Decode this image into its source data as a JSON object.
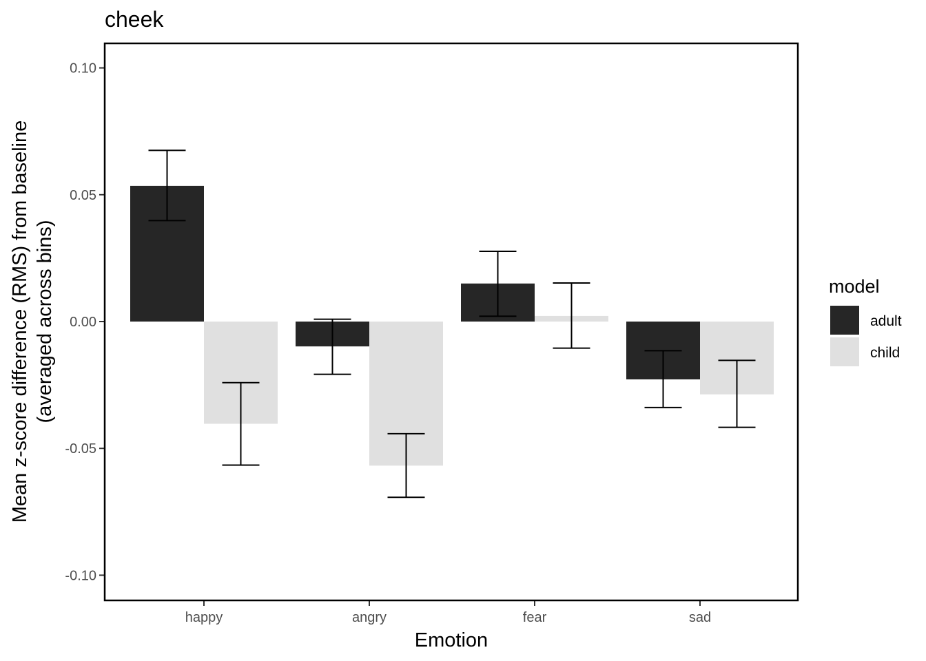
{
  "chart_data": {
    "type": "bar",
    "title": "cheek",
    "xlabel": "Emotion",
    "ylabel_line1": "Mean z-score difference (RMS) from baseline",
    "ylabel_line2": "(averaged across bins)",
    "categories": [
      "happy",
      "angry",
      "fear",
      "sad"
    ],
    "ylim": [
      -0.11,
      0.11
    ],
    "yticks": [
      -0.1,
      -0.05,
      0.0,
      0.05,
      0.1
    ],
    "ytick_labels": [
      "-0.10",
      "-0.05",
      "0.00",
      "0.05",
      "0.10"
    ],
    "grid": false,
    "legend": {
      "title": "model",
      "placement": "right",
      "entries": [
        "adult",
        "child"
      ]
    },
    "series": [
      {
        "name": "adult",
        "color": "#262626",
        "values": [
          0.0535,
          -0.0098,
          0.015,
          -0.0228
        ],
        "err_low": [
          0.0398,
          -0.0208,
          0.0021,
          -0.0339
        ],
        "err_high": [
          0.0675,
          0.0009,
          0.0277,
          -0.0115
        ]
      },
      {
        "name": "child",
        "color": "#e0e0e0",
        "values": [
          -0.0403,
          -0.0568,
          0.0022,
          -0.0287
        ],
        "err_low": [
          -0.0566,
          -0.0693,
          -0.0105,
          -0.0417
        ],
        "err_high": [
          -0.0241,
          -0.0442,
          0.0152,
          -0.0153
        ]
      }
    ]
  }
}
